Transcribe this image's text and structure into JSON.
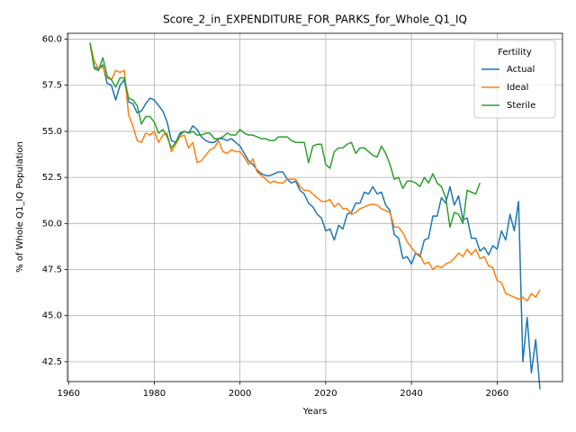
{
  "chart_data": {
    "type": "line",
    "title": "Score_2_in_EXPENDITURE_FOR_PARKS_for_Whole_Q1_IQ",
    "xlabel": "Years",
    "ylabel": "% of Whole Q1_IQ Population",
    "legend_title": "Fertility",
    "legend_loc": "upper right",
    "grid": true,
    "xlim": [
      1959.75,
      2075.25
    ],
    "ylim": [
      41.42,
      60.32
    ],
    "xticks": [
      1960,
      1980,
      2000,
      2020,
      2040,
      2060
    ],
    "yticks": [
      {
        "value": 42.5,
        "label": "42.5"
      },
      {
        "value": 45,
        "label": "45.0"
      },
      47.5,
      {
        "value": 50,
        "label": "50.0"
      },
      52.5,
      {
        "value": 55,
        "label": "55.0"
      },
      57.5,
      {
        "value": 60,
        "label": "60.0"
      }
    ],
    "x": [
      1965,
      1966,
      1967,
      1968,
      1969,
      1970,
      1971,
      1972,
      1973,
      1974,
      1975,
      1976,
      1977,
      1978,
      1979,
      1980,
      1981,
      1982,
      1983,
      1984,
      1985,
      1986,
      1987,
      1988,
      1989,
      1990,
      1991,
      1992,
      1993,
      1994,
      1995,
      1996,
      1997,
      1998,
      1999,
      2000,
      2001,
      2002,
      2003,
      2004,
      2005,
      2006,
      2007,
      2008,
      2009,
      2010,
      2011,
      2012,
      2013,
      2014,
      2015,
      2016,
      2017,
      2018,
      2019,
      2020,
      2021,
      2022,
      2023,
      2024,
      2025,
      2026,
      2027,
      2028,
      2029,
      2030,
      2031,
      2032,
      2033,
      2034,
      2035,
      2036,
      2037,
      2038,
      2039,
      2040,
      2041,
      2042,
      2043,
      2044,
      2045,
      2046,
      2047,
      2048,
      2049,
      2050,
      2051,
      2052,
      2053,
      2054,
      2055,
      2056,
      2057,
      2058,
      2059,
      2060,
      2061,
      2062,
      2063,
      2064,
      2065,
      2066,
      2067,
      2068,
      2069,
      2070
    ],
    "series": [
      {
        "name": "Actual",
        "color": "#1f77b4",
        "values": [
          59.8,
          58.5,
          58.4,
          58.6,
          57.6,
          57.5,
          56.7,
          57.5,
          57.8,
          56.6,
          56.5,
          56.0,
          56.1,
          56.5,
          56.8,
          56.7,
          56.4,
          56.1,
          55.5,
          54.5,
          54.4,
          54.9,
          55.0,
          54.9,
          55.3,
          55.1,
          54.7,
          54.5,
          54.4,
          54.4,
          54.6,
          54.6,
          54.5,
          54.6,
          54.4,
          54.2,
          53.8,
          53.4,
          53.2,
          52.9,
          52.7,
          52.6,
          52.6,
          52.7,
          52.8,
          52.8,
          52.4,
          52.2,
          52.3,
          51.8,
          51.6,
          51.1,
          50.9,
          50.5,
          50.3,
          49.6,
          49.7,
          49.1,
          49.9,
          49.7,
          50.5,
          50.6,
          51.1,
          51.1,
          51.7,
          51.6,
          52.0,
          51.6,
          51.7,
          51.0,
          50.7,
          49.4,
          49.2,
          48.1,
          48.2,
          47.8,
          48.4,
          48.2,
          49.1,
          49.2,
          50.4,
          50.4,
          51.4,
          51.1,
          52.0,
          51.0,
          51.5,
          50.2,
          50.3,
          49.2,
          49.2,
          48.5,
          48.7,
          48.3,
          48.8,
          48.6,
          49.6,
          49.1,
          50.5,
          49.6,
          51.2,
          42.5,
          44.9,
          41.9,
          43.7,
          41.0
        ]
      },
      {
        "name": "Ideal",
        "color": "#ff7f0e",
        "values": [
          59.8,
          58.8,
          58.4,
          58.5,
          57.9,
          57.8,
          58.3,
          58.2,
          58.3,
          55.9,
          55.3,
          54.5,
          54.4,
          54.9,
          54.8,
          55.0,
          54.4,
          54.8,
          54.9,
          53.9,
          54.3,
          54.7,
          54.8,
          54.1,
          54.4,
          53.3,
          53.4,
          53.7,
          54.0,
          54.1,
          54.5,
          53.9,
          53.8,
          54.0,
          53.9,
          53.9,
          53.6,
          53.2,
          53.5,
          52.8,
          52.6,
          52.4,
          52.2,
          52.3,
          52.2,
          52.2,
          52.4,
          52.4,
          52.4,
          52.0,
          51.8,
          51.8,
          51.6,
          51.4,
          51.2,
          51.2,
          51.3,
          50.9,
          51.1,
          50.8,
          50.8,
          50.5,
          50.6,
          50.8,
          50.9,
          51.0,
          51.05,
          51.0,
          50.8,
          50.7,
          50.6,
          49.8,
          49.8,
          49.5,
          49.0,
          48.7,
          48.4,
          48.3,
          47.8,
          47.9,
          47.5,
          47.7,
          47.6,
          47.8,
          47.9,
          48.1,
          48.4,
          48.2,
          48.6,
          48.3,
          48.6,
          48.1,
          48.2,
          47.7,
          47.6,
          46.9,
          46.8,
          46.2,
          46.1,
          46.0,
          45.9,
          46.0,
          45.8,
          46.2,
          46.0,
          46.4
        ]
      },
      {
        "name": "Sterile",
        "color": "#2ca02c",
        "values": [
          59.8,
          58.4,
          58.3,
          59.0,
          58.0,
          57.8,
          57.4,
          57.9,
          57.9,
          56.8,
          56.7,
          56.4,
          55.4,
          55.8,
          55.8,
          55.5,
          54.9,
          55.1,
          54.7,
          54.1,
          54.4,
          54.8,
          55.0,
          54.9,
          55.0,
          54.8,
          54.8,
          54.9,
          54.9,
          54.6,
          54.6,
          54.7,
          54.9,
          54.8,
          54.8,
          55.1,
          54.9,
          54.8,
          54.8,
          54.7,
          54.6,
          54.6,
          54.5,
          54.5,
          54.7,
          54.7,
          54.7,
          54.5,
          54.4,
          54.4,
          54.4,
          53.3,
          54.2,
          54.3,
          54.3,
          53.2,
          53.0,
          53.9,
          54.1,
          54.1,
          54.3,
          54.4,
          53.8,
          54.1,
          54.1,
          53.9,
          53.7,
          53.6,
          54.2,
          53.8,
          53.2,
          52.4,
          52.5,
          51.9,
          52.3,
          52.3,
          52.2,
          52.0,
          52.5,
          52.2,
          52.7,
          52.2,
          52.0,
          51.4,
          49.8,
          50.6,
          50.5,
          50.0,
          51.8,
          51.7,
          51.6,
          52.2,
          null,
          null,
          null,
          null,
          null,
          null,
          null,
          null,
          null,
          null,
          null,
          null,
          null,
          null
        ]
      }
    ]
  }
}
